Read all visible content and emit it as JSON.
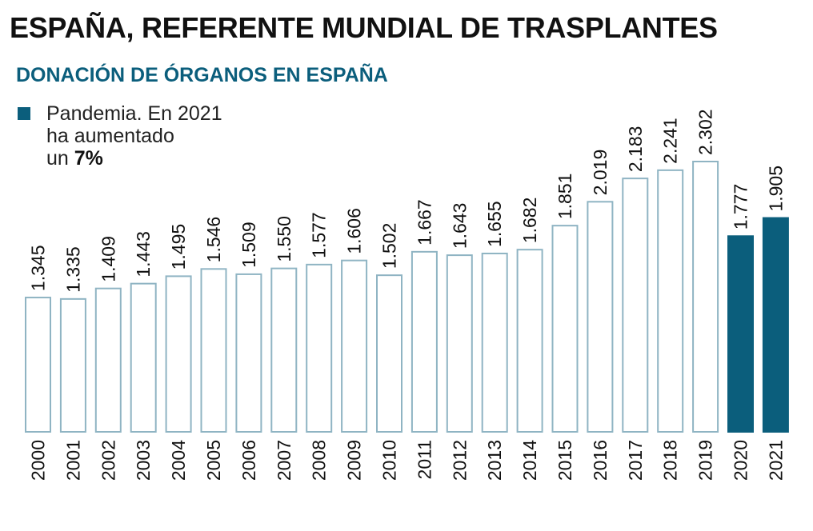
{
  "header": {
    "title": "ESPAÑA, REFERENTE MUNDIAL DE TRASPLANTES",
    "subtitle": "DONACIÓN DE ÓRGANOS EN ESPAÑA"
  },
  "legend": {
    "line1": "Pandemia. En 2021",
    "line2": "ha aumentado",
    "line3_prefix": "un ",
    "line3_bold": "7%"
  },
  "colors": {
    "accent": "#0b5e7c",
    "outline": "#8fb4c3"
  },
  "chart_data": {
    "type": "bar",
    "title": "DONACIÓN DE ÓRGANOS EN ESPAÑA",
    "categories": [
      "2000",
      "2001",
      "2002",
      "2003",
      "2004",
      "2005",
      "2006",
      "2007",
      "2008",
      "2009",
      "2010",
      "2011",
      "2012",
      "2013",
      "2014",
      "2015",
      "2016",
      "2017",
      "2018",
      "2019",
      "2020",
      "2021"
    ],
    "values": [
      1345,
      1335,
      1409,
      1443,
      1495,
      1546,
      1509,
      1550,
      1577,
      1606,
      1502,
      1667,
      1643,
      1655,
      1682,
      1851,
      2019,
      2183,
      2241,
      2302,
      1777,
      1905
    ],
    "value_labels": [
      "1.345",
      "1.335",
      "1.409",
      "1.443",
      "1.495",
      "1.546",
      "1.509",
      "1.550",
      "1.577",
      "1.606",
      "1.502",
      "1.667",
      "1.643",
      "1.655",
      "1.682",
      "1.851",
      "2.019",
      "2.183",
      "2.241",
      "2.302",
      "1.777",
      "1.905"
    ],
    "highlighted": [
      "2020",
      "2021"
    ],
    "highlight_legend": "Pandemia",
    "ylim": [
      400,
      2302
    ],
    "xlabel": "",
    "ylabel": "",
    "grid": false,
    "legend_position": "top-left"
  }
}
